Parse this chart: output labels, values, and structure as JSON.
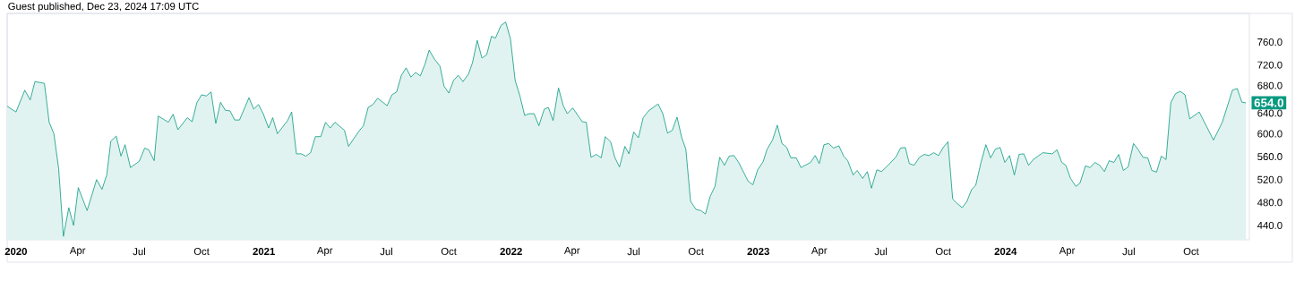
{
  "chart_data": {
    "type": "area",
    "color": "#089981",
    "annotations": [
      "Guest published, Dec 23, 2024 17:09 UTC",
      {
        "text": "654.0",
        "x": "2024-12-21",
        "y": 654
      }
    ],
    "x": [
      "2019-12-19",
      "2020-01-01",
      "2020-01-14",
      "2020-01-22",
      "2020-01-29",
      "2020-02-12",
      "2020-02-19",
      "2020-02-26",
      "2020-03-04",
      "2020-03-11",
      "2020-03-19",
      "2020-03-26",
      "2020-04-02",
      "2020-04-15",
      "2020-04-29",
      "2020-05-07",
      "2020-05-14",
      "2020-05-20",
      "2020-05-28",
      "2020-06-04",
      "2020-06-10",
      "2020-06-18",
      "2020-07-01",
      "2020-07-09",
      "2020-07-15",
      "2020-07-23",
      "2020-07-29",
      "2020-08-13",
      "2020-08-20",
      "2020-08-27",
      "2020-09-10",
      "2020-09-17",
      "2020-09-24",
      "2020-10-01",
      "2020-10-08",
      "2020-10-15",
      "2020-10-22",
      "2020-10-29",
      "2020-11-05",
      "2020-11-12",
      "2020-11-19",
      "2020-11-26",
      "2020-12-10",
      "2020-12-17",
      "2020-12-24",
      "2020-12-31",
      "2021-01-08",
      "2021-01-14",
      "2021-01-21",
      "2021-02-05",
      "2021-02-11",
      "2021-02-18",
      "2021-02-25",
      "2021-03-04",
      "2021-03-11",
      "2021-03-18",
      "2021-03-26",
      "2021-04-02",
      "2021-04-09",
      "2021-04-16",
      "2021-04-30",
      "2021-05-06",
      "2021-05-21",
      "2021-05-28",
      "2021-06-04",
      "2021-06-11",
      "2021-06-18",
      "2021-07-02",
      "2021-07-09",
      "2021-07-16",
      "2021-07-23",
      "2021-07-30",
      "2021-08-06",
      "2021-08-13",
      "2021-08-20",
      "2021-08-27",
      "2021-09-02",
      "2021-09-10",
      "2021-09-18",
      "2021-09-24",
      "2021-10-01",
      "2021-10-08",
      "2021-10-15",
      "2021-10-22",
      "2021-10-30",
      "2021-11-05",
      "2021-11-12",
      "2021-11-19",
      "2021-11-26",
      "2021-12-03",
      "2021-12-09",
      "2021-12-17",
      "2021-12-24",
      "2021-12-31",
      "2022-01-07",
      "2022-01-14",
      "2022-01-21",
      "2022-01-28",
      "2022-02-04",
      "2022-02-11",
      "2022-02-19",
      "2022-02-25",
      "2022-03-04",
      "2022-03-12",
      "2022-03-19",
      "2022-03-25",
      "2022-04-02",
      "2022-04-16",
      "2022-04-22",
      "2022-04-29",
      "2022-05-07",
      "2022-05-14",
      "2022-05-20",
      "2022-05-28",
      "2022-06-03",
      "2022-06-10",
      "2022-06-18",
      "2022-06-24",
      "2022-07-01",
      "2022-07-08",
      "2022-07-15",
      "2022-07-23",
      "2022-08-06",
      "2022-08-13",
      "2022-08-20",
      "2022-08-27",
      "2022-09-03",
      "2022-09-10",
      "2022-09-16",
      "2022-09-23",
      "2022-10-01",
      "2022-10-08",
      "2022-10-15",
      "2022-10-22",
      "2022-10-29",
      "2022-11-05",
      "2022-11-12",
      "2022-11-19",
      "2022-11-26",
      "2022-12-03",
      "2022-12-17",
      "2022-12-24",
      "2022-12-31",
      "2023-01-08",
      "2023-01-14",
      "2023-01-22",
      "2023-01-29",
      "2023-02-05",
      "2023-02-12",
      "2023-02-18",
      "2023-02-26",
      "2023-03-05",
      "2023-03-19",
      "2023-03-26",
      "2023-04-01",
      "2023-04-08",
      "2023-04-15",
      "2023-04-22",
      "2023-04-30",
      "2023-05-07",
      "2023-05-13",
      "2023-05-21",
      "2023-05-27",
      "2023-06-04",
      "2023-06-11",
      "2023-06-17",
      "2023-06-25",
      "2023-07-02",
      "2023-07-09",
      "2023-07-23",
      "2023-07-30",
      "2023-08-06",
      "2023-08-12",
      "2023-08-19",
      "2023-08-27",
      "2023-09-03",
      "2023-09-10",
      "2023-09-17",
      "2023-09-24",
      "2023-10-01",
      "2023-10-08",
      "2023-10-15",
      "2023-10-22",
      "2023-10-29",
      "2023-11-05",
      "2023-11-12",
      "2023-11-18",
      "2023-11-26",
      "2023-12-03",
      "2023-12-10",
      "2023-12-17",
      "2023-12-24",
      "2023-12-31",
      "2024-01-07",
      "2024-01-14",
      "2024-01-21",
      "2024-01-28",
      "2024-02-04",
      "2024-02-11",
      "2024-02-18",
      "2024-02-25",
      "2024-03-10",
      "2024-03-17",
      "2024-03-24",
      "2024-03-30",
      "2024-04-06",
      "2024-04-14",
      "2024-04-20",
      "2024-04-28",
      "2024-05-05",
      "2024-05-12",
      "2024-05-19",
      "2024-05-26",
      "2024-06-02",
      "2024-06-09",
      "2024-06-16",
      "2024-06-23",
      "2024-06-30",
      "2024-07-08",
      "2024-07-15",
      "2024-07-22",
      "2024-07-29",
      "2024-08-04",
      "2024-08-11",
      "2024-08-18",
      "2024-08-25",
      "2024-09-01",
      "2024-09-08",
      "2024-09-15",
      "2024-09-22",
      "2024-09-29",
      "2024-10-13",
      "2024-11-03",
      "2024-11-16",
      "2024-12-01",
      "2024-12-08",
      "2024-12-15",
      "2024-12-21"
    ],
    "values": [
      648,
      638,
      676,
      659,
      691,
      688,
      620,
      600,
      539,
      421,
      471,
      440,
      506,
      466,
      520,
      503,
      528,
      587,
      596,
      561,
      581,
      541,
      552,
      575,
      572,
      553,
      631,
      620,
      634,
      607,
      628,
      621,
      654,
      668,
      666,
      673,
      618,
      655,
      641,
      640,
      624,
      624,
      663,
      643,
      651,
      635,
      610,
      628,
      600,
      623,
      638,
      565,
      565,
      561,
      567,
      595,
      595,
      620,
      610,
      620,
      606,
      578,
      604,
      614,
      646,
      651,
      662,
      649,
      668,
      673,
      702,
      715,
      699,
      707,
      701,
      722,
      746,
      730,
      718,
      683,
      671,
      693,
      702,
      691,
      704,
      724,
      763,
      732,
      738,
      770,
      767,
      789,
      795,
      766,
      693,
      666,
      632,
      635,
      635,
      614,
      643,
      646,
      623,
      680,
      649,
      635,
      645,
      621,
      620,
      559,
      564,
      558,
      595,
      586,
      559,
      542,
      578,
      565,
      603,
      593,
      628,
      640,
      652,
      635,
      601,
      606,
      629,
      593,
      573,
      482,
      468,
      466,
      460,
      491,
      508,
      559,
      545,
      561,
      562,
      550,
      517,
      511,
      537,
      551,
      573,
      589,
      615,
      583,
      576,
      558,
      558,
      541,
      550,
      562,
      548,
      581,
      583,
      575,
      579,
      561,
      553,
      528,
      536,
      522,
      534,
      505,
      537,
      534,
      542,
      559,
      575,
      576,
      548,
      545,
      559,
      564,
      562,
      567,
      562,
      576,
      586,
      486,
      478,
      471,
      482,
      503,
      510,
      551,
      581,
      558,
      573,
      576,
      550,
      562,
      528,
      564,
      565,
      545,
      555,
      561,
      567,
      565,
      572,
      550,
      545,
      522,
      508,
      514,
      544,
      541,
      550,
      545,
      534,
      553,
      550,
      564,
      536,
      542,
      583,
      572,
      559,
      558,
      536,
      533,
      561,
      555,
      654,
      670,
      674,
      668,
      626,
      638,
      589,
      620,
      676,
      679,
      655,
      654
    ],
    "xlim": [
      "2019-12-19",
      "2024-12-26"
    ],
    "xticks": [
      {
        "value": "2020-01-01",
        "label": "2020"
      },
      {
        "value": "2020-04-01",
        "label": "Apr"
      },
      {
        "value": "2020-07-01",
        "label": "Jul"
      },
      {
        "value": "2020-10-01",
        "label": "Oct"
      },
      {
        "value": "2021-01-01",
        "label": "2021"
      },
      {
        "value": "2021-04-01",
        "label": "Apr"
      },
      {
        "value": "2021-07-01",
        "label": "Jul"
      },
      {
        "value": "2021-10-01",
        "label": "Oct"
      },
      {
        "value": "2022-01-01",
        "label": "2022"
      },
      {
        "value": "2022-04-01",
        "label": "Apr"
      },
      {
        "value": "2022-07-01",
        "label": "Jul"
      },
      {
        "value": "2022-10-01",
        "label": "Oct"
      },
      {
        "value": "2023-01-01",
        "label": "2023"
      },
      {
        "value": "2023-04-01",
        "label": "Apr"
      },
      {
        "value": "2023-07-01",
        "label": "Jul"
      },
      {
        "value": "2023-10-01",
        "label": "Oct"
      },
      {
        "value": "2024-01-01",
        "label": "2024"
      },
      {
        "value": "2024-04-01",
        "label": "Apr"
      },
      {
        "value": "2024-07-01",
        "label": "Jul"
      },
      {
        "value": "2024-10-01",
        "label": "Oct"
      }
    ],
    "ylim": [
      415,
      810
    ],
    "yticks": [
      {
        "value": 440,
        "label": "440.0"
      },
      {
        "value": 480,
        "label": "480.0"
      },
      {
        "value": 520,
        "label": "520.0"
      },
      {
        "value": 560,
        "label": "560.0"
      },
      {
        "value": 600,
        "label": "600.0"
      },
      {
        "value": 640,
        "label": "640.0"
      },
      {
        "value": 680,
        "label": "680.0"
      },
      {
        "value": 720,
        "label": "720.0"
      },
      {
        "value": 760,
        "label": "760.0"
      }
    ]
  }
}
